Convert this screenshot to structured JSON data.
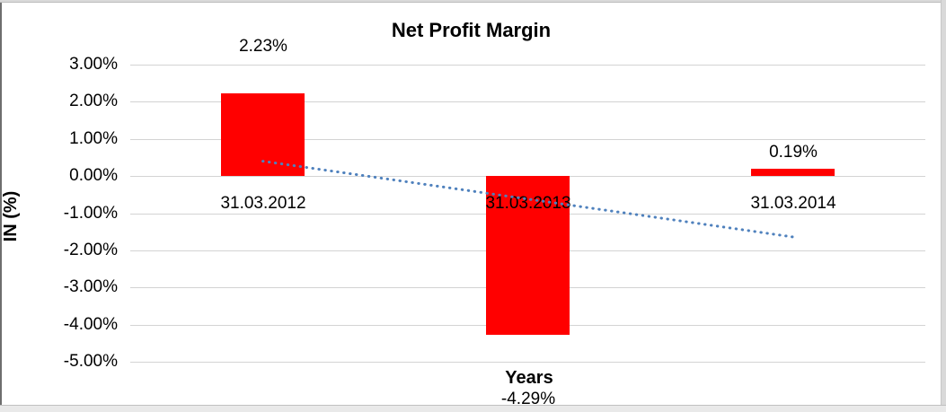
{
  "frame": {
    "outer_margin_color": "#d9d9d9",
    "left_border_color": "#6e6e6e",
    "background": "#ffffff"
  },
  "chart": {
    "title": "Net Profit Margin",
    "y_axis_title": "IN (%)",
    "x_axis_title": "Years"
  },
  "chart_data": {
    "type": "bar",
    "title": "Net Profit Margin",
    "xlabel": "Years",
    "ylabel": "IN (%)",
    "categories": [
      "31.03.2012",
      "31.03.2013",
      "31.03.2014"
    ],
    "values": [
      2.23,
      -4.29,
      0.19
    ],
    "data_labels": [
      "2.23%",
      "-4.29%",
      "0.19%"
    ],
    "bar_color": "#ff0000",
    "ylim": [
      -5,
      3
    ],
    "y_ticks": [
      {
        "label": "3.00%",
        "value": 3
      },
      {
        "label": "2.00%",
        "value": 2
      },
      {
        "label": "1.00%",
        "value": 1
      },
      {
        "label": "0.00%",
        "value": 0
      },
      {
        "label": "-1.00%",
        "value": -1
      },
      {
        "label": "-2.00%",
        "value": -2
      },
      {
        "label": "-3.00%",
        "value": -3
      },
      {
        "label": "-4.00%",
        "value": -4
      },
      {
        "label": "-5.00%",
        "value": -5
      }
    ],
    "gridlines": "horizontal",
    "gridline_color": "#d3d3d3",
    "legend": "none",
    "trendline": {
      "type": "linear",
      "style": "dotted",
      "color": "#4f81bd",
      "start_value": 0.4,
      "end_value": -1.64
    }
  }
}
